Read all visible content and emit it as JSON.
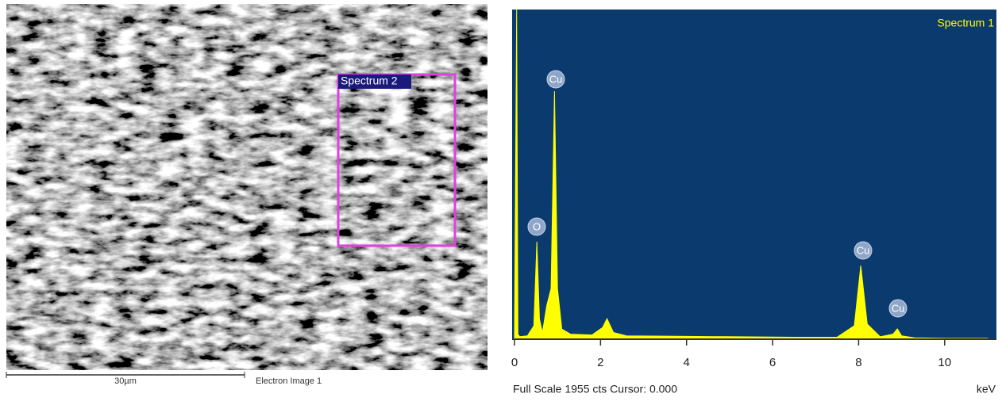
{
  "image": {
    "region_label": "Spectrum 2",
    "scale_label": "30µm",
    "caption": "Electron Image 1"
  },
  "chart_data": {
    "type": "area",
    "title": "Spectrum 1",
    "footer": "Full Scale 1955 cts Cursor: 0.000",
    "x_label": "keV",
    "color": "#ffff00",
    "background": "#0b3a6e",
    "x": [
      0,
      0.05,
      0.08,
      0.12,
      0.3,
      0.45,
      0.52,
      0.58,
      0.65,
      0.75,
      0.85,
      0.93,
      1.0,
      1.1,
      1.3,
      1.8,
      2.05,
      2.15,
      2.3,
      2.6,
      3.5,
      5,
      6.5,
      7.5,
      7.9,
      8.05,
      8.2,
      8.5,
      8.8,
      8.9,
      9.0,
      9.3,
      10,
      11
    ],
    "values": [
      10,
      1955,
      30,
      15,
      20,
      80,
      578,
      120,
      40,
      200,
      300,
      1471,
      300,
      60,
      30,
      25,
      70,
      122,
      40,
      20,
      18,
      15,
      12,
      12,
      80,
      437,
      90,
      15,
      30,
      61,
      20,
      8,
      5,
      5
    ],
    "xlim": [
      0,
      11.13
    ],
    "ylim": [
      0,
      1955
    ],
    "xticks": [
      0,
      2,
      4,
      6,
      8,
      10
    ],
    "annotations": [
      "Cu",
      "O",
      "Cu",
      "Cu"
    ]
  }
}
